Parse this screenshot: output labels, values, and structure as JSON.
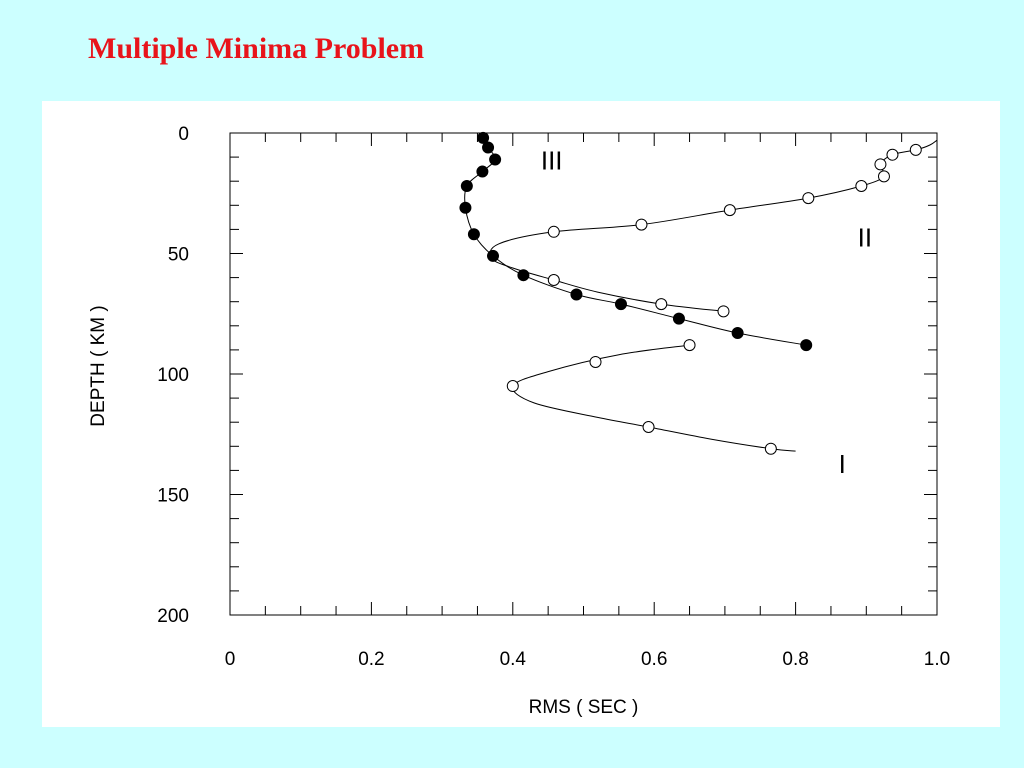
{
  "slide": {
    "title": "Multiple Minima Problem",
    "title_color": "#e8141b",
    "background": "#ccffff"
  },
  "chart_data": {
    "type": "scatter",
    "xlabel": "RMS ( SEC )",
    "ylabel": "DEPTH ( KM )",
    "xlim": [
      0,
      1.0
    ],
    "ylim": [
      200,
      0
    ],
    "y_inverted": true,
    "x_ticks": [
      "0",
      "0.2",
      "0.4",
      "0.6",
      "0.8",
      "1.0"
    ],
    "y_ticks": [
      "0",
      "50",
      "100",
      "150",
      "200"
    ],
    "grid": false,
    "series": [
      {
        "name": "I",
        "marker": "open",
        "points": [
          [
            0.65,
            88
          ],
          [
            0.517,
            95
          ],
          [
            0.4,
            105
          ],
          [
            0.592,
            122
          ],
          [
            0.765,
            131
          ]
        ],
        "curve": [
          [
            0.65,
            88
          ],
          [
            0.55,
            92
          ],
          [
            0.45,
            99
          ],
          [
            0.4,
            105
          ],
          [
            0.43,
            112
          ],
          [
            0.52,
            118
          ],
          [
            0.592,
            122
          ],
          [
            0.68,
            127
          ],
          [
            0.765,
            131
          ],
          [
            0.8,
            132
          ]
        ]
      },
      {
        "name": "II",
        "marker": "open",
        "points": [
          [
            0.698,
            74
          ],
          [
            0.61,
            71
          ],
          [
            0.458,
            61
          ],
          [
            0.458,
            41
          ],
          [
            0.582,
            38
          ],
          [
            0.707,
            32
          ],
          [
            0.818,
            27
          ],
          [
            0.893,
            22
          ],
          [
            0.925,
            18
          ],
          [
            0.92,
            13
          ],
          [
            0.937,
            9
          ],
          [
            0.97,
            7
          ]
        ],
        "curve": [
          [
            0.698,
            74
          ],
          [
            0.61,
            71
          ],
          [
            0.52,
            66
          ],
          [
            0.458,
            61
          ],
          [
            0.4,
            56
          ],
          [
            0.37,
            52
          ],
          [
            0.38,
            46
          ],
          [
            0.458,
            41
          ],
          [
            0.582,
            38
          ],
          [
            0.707,
            32
          ],
          [
            0.818,
            27
          ],
          [
            0.893,
            22
          ],
          [
            0.925,
            18
          ],
          [
            0.92,
            13
          ],
          [
            0.937,
            9
          ],
          [
            0.97,
            7
          ],
          [
            0.99,
            5
          ],
          [
            1.0,
            3
          ]
        ]
      },
      {
        "name": "III",
        "marker": "filled",
        "points": [
          [
            0.358,
            2
          ],
          [
            0.365,
            6
          ],
          [
            0.375,
            11
          ],
          [
            0.357,
            16
          ],
          [
            0.335,
            22
          ],
          [
            0.333,
            31
          ],
          [
            0.345,
            42
          ],
          [
            0.372,
            51
          ],
          [
            0.415,
            59
          ],
          [
            0.49,
            67
          ],
          [
            0.553,
            71
          ],
          [
            0.635,
            77
          ],
          [
            0.718,
            83
          ],
          [
            0.815,
            88
          ]
        ],
        "curve": [
          [
            0.358,
            2
          ],
          [
            0.365,
            6
          ],
          [
            0.375,
            11
          ],
          [
            0.357,
            16
          ],
          [
            0.335,
            22
          ],
          [
            0.333,
            31
          ],
          [
            0.345,
            42
          ],
          [
            0.372,
            51
          ],
          [
            0.415,
            59
          ],
          [
            0.49,
            67
          ],
          [
            0.553,
            71
          ],
          [
            0.635,
            77
          ],
          [
            0.718,
            83
          ],
          [
            0.815,
            88
          ]
        ]
      }
    ],
    "annotations": [
      {
        "text": "III",
        "x": 0.455,
        "y": 11
      },
      {
        "text": "II",
        "x": 0.898,
        "y": 43
      },
      {
        "text": "I",
        "x": 0.866,
        "y": 137
      }
    ]
  }
}
